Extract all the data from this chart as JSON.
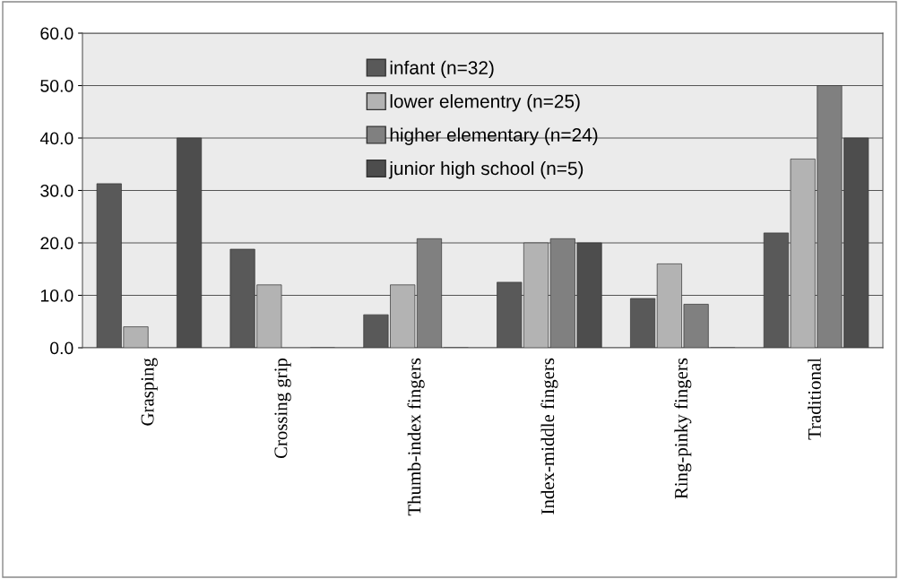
{
  "chart_data": {
    "type": "bar",
    "categories": [
      "Grasping",
      "Crossing grip",
      "Thumb-index fingers",
      "Index-middle fingers",
      "Ring-pinky fingers",
      "Traditional"
    ],
    "series": [
      {
        "name": "infant (n=32)",
        "color": "#595959",
        "values": [
          31.3,
          18.8,
          6.3,
          12.5,
          9.4,
          21.9
        ]
      },
      {
        "name": "lower elementry (n=25)",
        "color": "#b3b3b3",
        "values": [
          4.0,
          12.0,
          12.0,
          20.0,
          16.0,
          36.0
        ]
      },
      {
        "name": "higher elementary (n=24)",
        "color": "#808080",
        "values": [
          0,
          0,
          20.8,
          20.8,
          8.3,
          50.0
        ]
      },
      {
        "name": "junior high school (n=5)",
        "color": "#4d4d4d",
        "values": [
          40.0,
          0,
          0,
          20.0,
          0,
          40.0
        ]
      }
    ],
    "ylim": [
      0,
      60
    ],
    "yticks": [
      {
        "value": 0,
        "label": "0.0"
      },
      {
        "value": 10,
        "label": "10.0"
      },
      {
        "value": 20,
        "label": "20.0"
      },
      {
        "value": 30,
        "label": "30.0"
      },
      {
        "value": 40,
        "label": "40.0"
      },
      {
        "value": 50,
        "label": "50.0"
      },
      {
        "value": 60,
        "label": "60.0"
      }
    ],
    "grid": "y",
    "legend": "top"
  }
}
